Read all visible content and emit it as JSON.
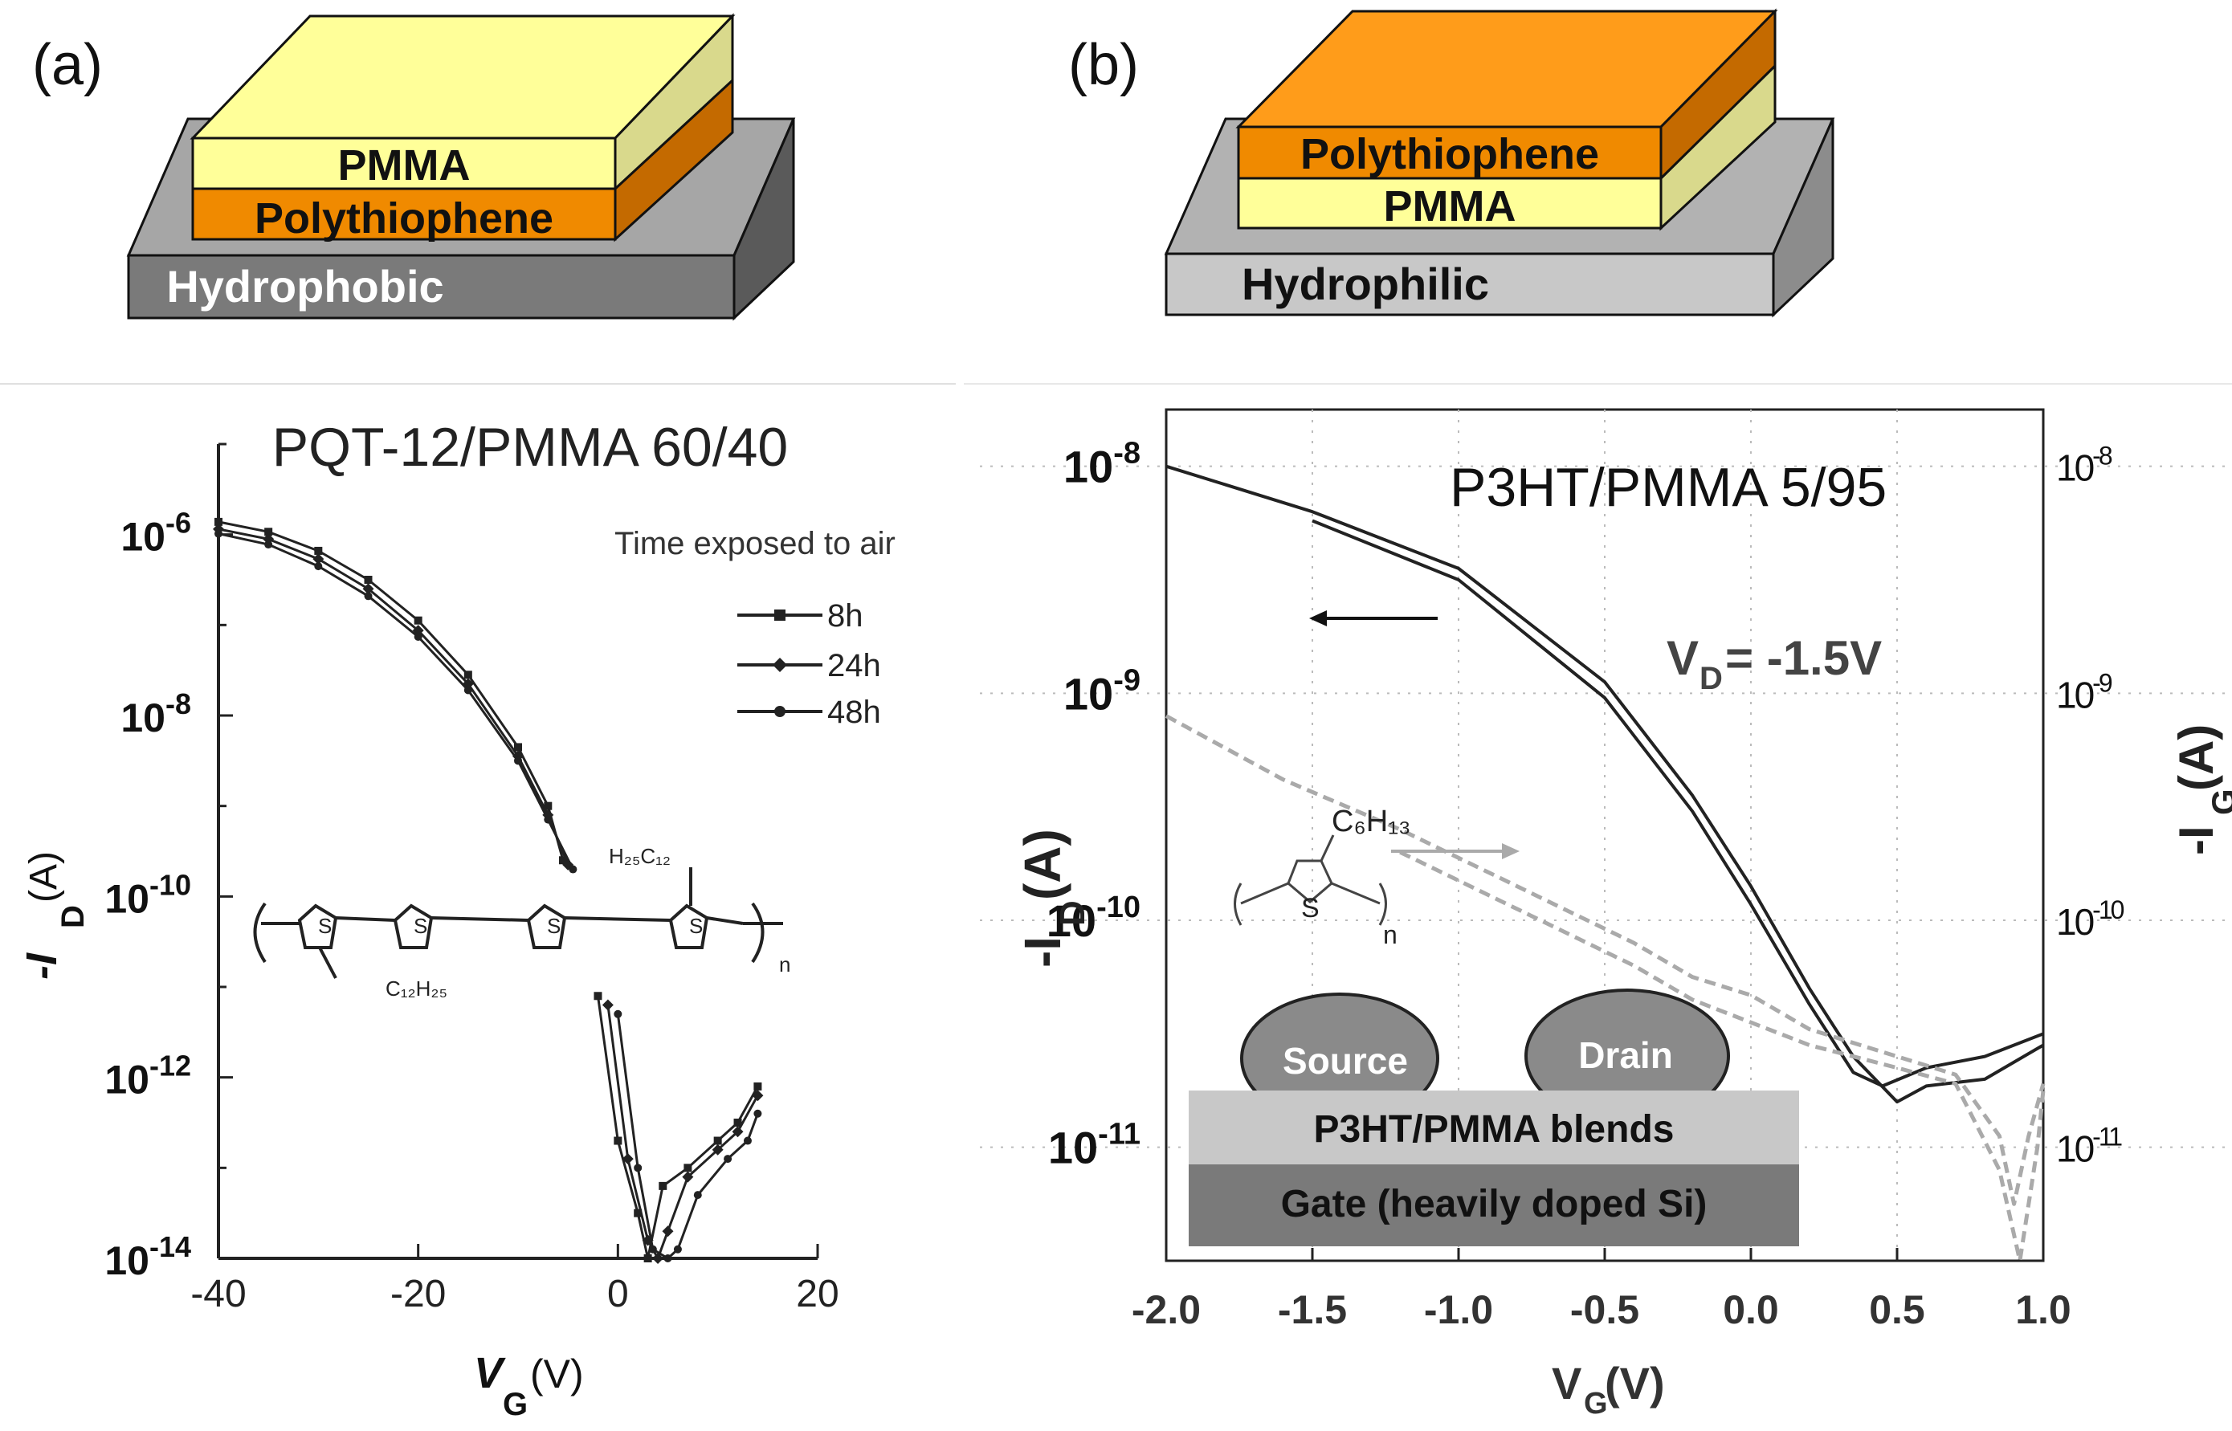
{
  "panel_a": {
    "label": "(a)",
    "layers": {
      "top": "PMMA",
      "middle": "Polythiophene",
      "bottom": "Hydrophobic"
    }
  },
  "panel_b": {
    "label": "(b)",
    "layers": {
      "top": "Polythiophene",
      "middle": "PMMA",
      "bottom": "Hydrophilic"
    }
  },
  "colors": {
    "pmma": "#ffff99",
    "pmma_side": "#d9d98c",
    "polythiophene": "#ff9c1a",
    "polythiophene_front": "#f08a00",
    "polythiophene_side": "#c46a00",
    "hydrophobic_front": "#7a7a7a",
    "hydrophobic_top": "#a6a6a6",
    "hydrophobic_side": "#5a5a5a",
    "hydrophilic_front": "#c8c8c8",
    "hydrophilic_top": "#b2b2b2",
    "hydrophilic_side": "#8c8c8c",
    "curve_dark": "#222222",
    "curve_gray": "#aaaaaa"
  },
  "chart_data": [
    {
      "id": "left",
      "type": "line",
      "title": "PQT-12/PMMA  60/40",
      "xlabel": "V",
      "xlabel_sub": "G",
      "xlabel_unit": "(V)",
      "ylabel": "-I",
      "ylabel_sub": "D",
      "ylabel_unit": "(A)",
      "xlim": [
        -40,
        20
      ],
      "ylim_exp": [
        -14,
        -5
      ],
      "x_ticks": [
        -40,
        -20,
        0,
        20
      ],
      "x_tick_labels": [
        "-40",
        "-20",
        "0",
        "20"
      ],
      "y_ticks_exp": [
        -6,
        -8,
        -10,
        -12,
        -14
      ],
      "y_tick_base": "10",
      "y_tick_exps": [
        "-6",
        "-8",
        "-10",
        "-12",
        "-14"
      ],
      "legend": {
        "title": "Time exposed to air",
        "entries": [
          "8h",
          "24h",
          "48h"
        ],
        "markers": [
          "square",
          "diamond",
          "circle"
        ]
      },
      "molecule": {
        "sub_top": "H₂₅C₁₂",
        "sub_bottom": "C₁₂H₂₅",
        "repeat": "n",
        "atom": "S"
      },
      "series": [
        {
          "name": "8h",
          "x": [
            -40,
            -35,
            -30,
            -25,
            -20,
            -15,
            -10,
            -7,
            -5.5
          ],
          "log_y": [
            -5.86,
            -5.97,
            -6.18,
            -6.5,
            -6.95,
            -7.55,
            -8.35,
            -9.0,
            -9.6
          ]
        },
        {
          "name": "24h",
          "x": [
            -40,
            -35,
            -30,
            -25,
            -20,
            -15,
            -10,
            -7,
            -5
          ],
          "log_y": [
            -5.94,
            -6.05,
            -6.27,
            -6.6,
            -7.06,
            -7.65,
            -8.45,
            -9.1,
            -9.65
          ]
        },
        {
          "name": "48h",
          "x": [
            -40,
            -35,
            -30,
            -25,
            -20,
            -15,
            -10,
            -7,
            -4.5
          ],
          "log_y": [
            -5.99,
            -6.11,
            -6.35,
            -6.68,
            -7.13,
            -7.72,
            -8.5,
            -9.15,
            -9.7
          ]
        },
        {
          "name": "8h",
          "x": [
            -2,
            0,
            2,
            3,
            4.5,
            7,
            10,
            12,
            14
          ],
          "log_y": [
            -11.1,
            -12.7,
            -13.5,
            -14.0,
            -13.2,
            -13.0,
            -12.7,
            -12.5,
            -12.1
          ]
        },
        {
          "name": "24h",
          "x": [
            -1,
            1,
            3,
            4,
            5,
            7,
            10,
            12,
            14
          ],
          "log_y": [
            -11.2,
            -12.9,
            -13.8,
            -14.0,
            -13.7,
            -13.1,
            -12.8,
            -12.6,
            -12.2
          ]
        },
        {
          "name": "48h",
          "x": [
            0,
            2,
            3.5,
            5,
            6,
            8,
            11,
            13,
            14
          ],
          "log_y": [
            -11.3,
            -13.0,
            -13.9,
            -14.0,
            -13.9,
            -13.3,
            -12.9,
            -12.7,
            -12.4
          ]
        }
      ]
    },
    {
      "id": "right",
      "type": "line",
      "title": "P3HT/PMMA 5/95",
      "xlabel": "V",
      "xlabel_sub": "G",
      "xlabel_unit": " (V)",
      "ylabel": "-I",
      "ylabel_sub": "D",
      "ylabel_unit": " (A)",
      "y2label": "-I",
      "y2label_sub": "G",
      "y2label_unit": " (A)",
      "annotation": {
        "text": "V",
        "sub": "D",
        "rest": " = -1.5V"
      },
      "xlim": [
        -2.0,
        1.0
      ],
      "ylim_exp": [
        -11.5,
        -7.75
      ],
      "x_ticks": [
        -2.0,
        -1.5,
        -1.0,
        -0.5,
        0.0,
        0.5,
        1.0
      ],
      "x_tick_labels": [
        "-2.0",
        "-1.5",
        "-1.0",
        "-0.5",
        "0.0",
        "0.5",
        "1.0"
      ],
      "y_ticks_exp": [
        -8,
        -9,
        -10,
        -11
      ],
      "y_tick_base": "10",
      "y_tick_exps": [
        "-8",
        "-9",
        "-10",
        "-11"
      ],
      "y2_tick_exps": [
        "-8",
        "-9",
        "-10",
        "-11"
      ],
      "molecule": {
        "sub": "C₆H₁₃",
        "repeat": "n",
        "atom": "S"
      },
      "device": {
        "source": "Source",
        "drain": "Drain",
        "blend": "P3HT/PMMA blends",
        "gate": "Gate  (heavily doped Si)"
      },
      "series": [
        {
          "name": "I_D forward",
          "axis": "left",
          "x": [
            -2.0,
            -1.5,
            -1.0,
            -0.5,
            -0.2,
            0.0,
            0.2,
            0.35,
            0.5,
            0.6,
            0.8,
            1.0
          ],
          "log_y": [
            -8.0,
            -8.2,
            -8.45,
            -8.95,
            -9.45,
            -9.85,
            -10.3,
            -10.6,
            -10.8,
            -10.73,
            -10.7,
            -10.55
          ]
        },
        {
          "name": "I_D reverse",
          "axis": "left",
          "x": [
            -1.5,
            -1.0,
            -0.5,
            -0.2,
            0.0,
            0.2,
            0.35,
            0.45,
            0.6,
            0.8,
            1.0
          ],
          "log_y": [
            -8.24,
            -8.5,
            -9.02,
            -9.52,
            -9.93,
            -10.37,
            -10.67,
            -10.73,
            -10.65,
            -10.6,
            -10.5
          ]
        },
        {
          "name": "I_G forward",
          "axis": "right",
          "x": [
            -2.0,
            -1.6,
            -1.2,
            -0.8,
            -0.4,
            -0.2,
            0.0,
            0.2,
            0.5,
            0.7,
            0.85,
            0.9,
            0.95,
            1.0
          ],
          "log_y": [
            -9.1,
            -9.38,
            -9.6,
            -9.85,
            -10.1,
            -10.25,
            -10.33,
            -10.48,
            -10.6,
            -10.68,
            -10.95,
            -11.25,
            -10.95,
            -10.72
          ]
        },
        {
          "name": "I_G reverse",
          "axis": "right",
          "x": [
            -1.2,
            -0.8,
            -0.4,
            -0.2,
            0.0,
            0.2,
            0.5,
            0.7,
            0.85,
            0.92,
            0.98,
            1.0
          ],
          "log_y": [
            -9.7,
            -9.95,
            -10.2,
            -10.35,
            -10.45,
            -10.55,
            -10.65,
            -10.72,
            -11.1,
            -11.5,
            -11.0,
            -10.75
          ]
        }
      ]
    }
  ]
}
